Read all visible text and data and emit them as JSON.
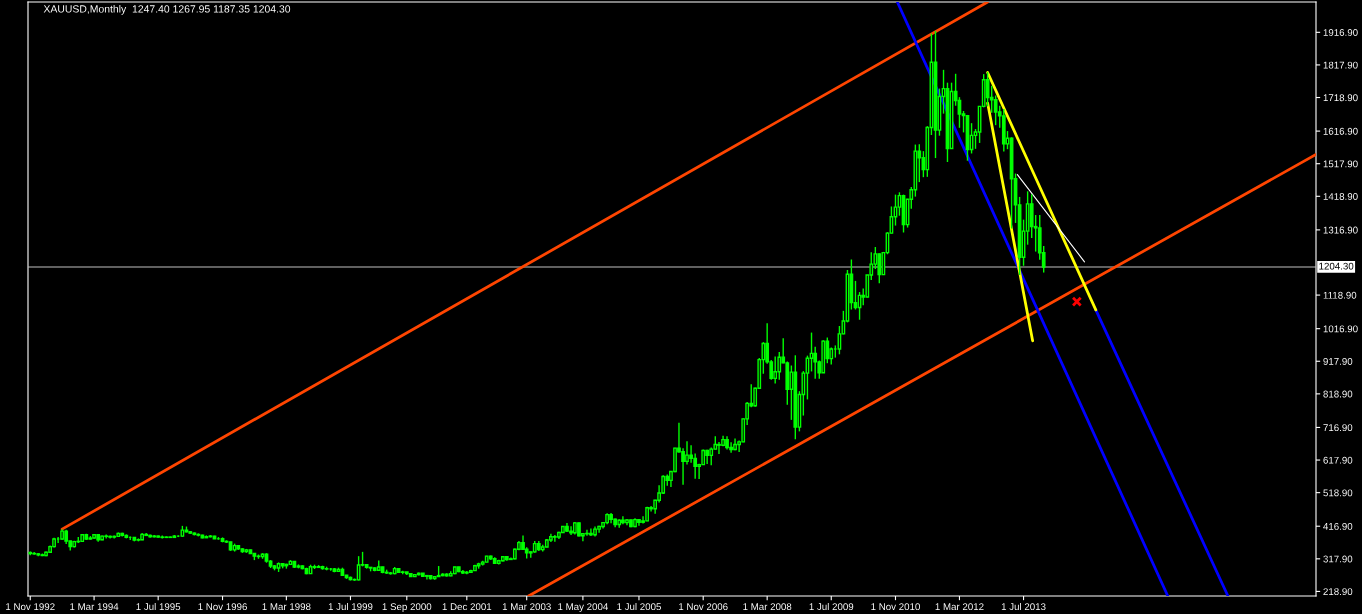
{
  "chart_data": {
    "type": "candlestick",
    "title": "XAUUSD,Monthly  1247.40 1267.95 1187.35 1204.30",
    "xlim": [
      "1992-10-15",
      "2019-08-01"
    ],
    "xticks": [
      {
        "value": "1992-11-01",
        "label": "1 Nov 1992"
      },
      {
        "value": "1994-03-01",
        "label": "1 Mar 1994"
      },
      {
        "value": "1995-07-01",
        "label": "1 Jul 1995"
      },
      {
        "value": "1996-11-01",
        "label": "1 Nov 1996"
      },
      {
        "value": "1998-03-01",
        "label": "1 Mar 1998"
      },
      {
        "value": "1999-07-01",
        "label": "1 Jul 1999"
      },
      {
        "value": "2000-09-01",
        "label": "1 Sep 2000"
      },
      {
        "value": "2001-12-01",
        "label": "1 Dec 2001"
      },
      {
        "value": "2003-03-01",
        "label": "1 Mar 2003"
      },
      {
        "value": "2004-05-01",
        "label": "1 May 2004"
      },
      {
        "value": "2005-07-01",
        "label": "1 Jul 2005"
      },
      {
        "value": "2006-11-01",
        "label": "1 Nov 2006"
      },
      {
        "value": "2008-03-01",
        "label": "1 Mar 2008"
      },
      {
        "value": "2009-07-01",
        "label": "1 Jul 2009"
      },
      {
        "value": "2010-11-01",
        "label": "1 Nov 2010"
      },
      {
        "value": "2012-03-01",
        "label": "1 Mar 2012"
      },
      {
        "value": "2013-07-01",
        "label": "1 Jul 2013"
      }
    ],
    "ylim": [
      205,
      2009
    ],
    "yticks": [
      {
        "value": 218.9,
        "label": "218.90"
      },
      {
        "value": 317.9,
        "label": "317.90"
      },
      {
        "value": 416.9,
        "label": "416.90"
      },
      {
        "value": 518.9,
        "label": "518.90"
      },
      {
        "value": 617.9,
        "label": "617.90"
      },
      {
        "value": 716.9,
        "label": "716.90"
      },
      {
        "value": 818.9,
        "label": "818.90"
      },
      {
        "value": 917.9,
        "label": "917.90"
      },
      {
        "value": 1016.9,
        "label": "1016.90"
      },
      {
        "value": 1118.9,
        "label": "1118.90"
      },
      {
        "value": 1316.9,
        "label": "1316.90"
      },
      {
        "value": 1418.9,
        "label": "1418.90"
      },
      {
        "value": 1517.9,
        "label": "1517.90"
      },
      {
        "value": 1616.9,
        "label": "1616.90"
      },
      {
        "value": 1718.9,
        "label": "1718.90"
      },
      {
        "value": 1817.9,
        "label": "1817.90"
      },
      {
        "value": 1916.9,
        "label": "1916.90"
      }
    ],
    "ref_lines": [
      {
        "axis": "y",
        "value": 1204.3,
        "label": "1204.30",
        "color": "#c0c0c0"
      }
    ],
    "series": [
      {
        "color": "#00ff00",
        "x": [
          "1992-11",
          "1992-12",
          "1993-01",
          "1993-02",
          "1993-03",
          "1993-04",
          "1993-05",
          "1993-06",
          "1993-07",
          "1993-08",
          "1993-09",
          "1993-10",
          "1993-11",
          "1993-12",
          "1994-01",
          "1994-02",
          "1994-03",
          "1994-04",
          "1994-05",
          "1994-06",
          "1994-07",
          "1994-08",
          "1994-09",
          "1994-10",
          "1994-11",
          "1994-12",
          "1995-01",
          "1995-02",
          "1995-03",
          "1995-04",
          "1995-05",
          "1995-06",
          "1995-07",
          "1995-08",
          "1995-09",
          "1995-10",
          "1995-11",
          "1995-12",
          "1996-01",
          "1996-02",
          "1996-03",
          "1996-04",
          "1996-05",
          "1996-06",
          "1996-07",
          "1996-08",
          "1996-09",
          "1996-10",
          "1996-11",
          "1996-12",
          "1997-01",
          "1997-02",
          "1997-03",
          "1997-04",
          "1997-05",
          "1997-06",
          "1997-07",
          "1997-08",
          "1997-09",
          "1997-10",
          "1997-11",
          "1997-12",
          "1998-01",
          "1998-02",
          "1998-03",
          "1998-04",
          "1998-05",
          "1998-06",
          "1998-07",
          "1998-08",
          "1998-09",
          "1998-10",
          "1998-11",
          "1998-12",
          "1999-01",
          "1999-02",
          "1999-03",
          "1999-04",
          "1999-05",
          "1999-06",
          "1999-07",
          "1999-08",
          "1999-09",
          "1999-10",
          "1999-11",
          "1999-12",
          "2000-01",
          "2000-02",
          "2000-03",
          "2000-04",
          "2000-05",
          "2000-06",
          "2000-07",
          "2000-08",
          "2000-09",
          "2000-10",
          "2000-11",
          "2000-12",
          "2001-01",
          "2001-02",
          "2001-03",
          "2001-04",
          "2001-05",
          "2001-06",
          "2001-07",
          "2001-08",
          "2001-09",
          "2001-10",
          "2001-11",
          "2001-12",
          "2002-01",
          "2002-02",
          "2002-03",
          "2002-04",
          "2002-05",
          "2002-06",
          "2002-07",
          "2002-08",
          "2002-09",
          "2002-10",
          "2002-11",
          "2002-12",
          "2003-01",
          "2003-02",
          "2003-03",
          "2003-04",
          "2003-05",
          "2003-06",
          "2003-07",
          "2003-08",
          "2003-09",
          "2003-10",
          "2003-11",
          "2003-12",
          "2004-01",
          "2004-02",
          "2004-03",
          "2004-04",
          "2004-05",
          "2004-06",
          "2004-07",
          "2004-08",
          "2004-09",
          "2004-10",
          "2004-11",
          "2004-12",
          "2005-01",
          "2005-02",
          "2005-03",
          "2005-04",
          "2005-05",
          "2005-06",
          "2005-07",
          "2005-08",
          "2005-09",
          "2005-10",
          "2005-11",
          "2005-12",
          "2006-01",
          "2006-02",
          "2006-03",
          "2006-04",
          "2006-05",
          "2006-06",
          "2006-07",
          "2006-08",
          "2006-09",
          "2006-10",
          "2006-11",
          "2006-12",
          "2007-01",
          "2007-02",
          "2007-03",
          "2007-04",
          "2007-05",
          "2007-06",
          "2007-07",
          "2007-08",
          "2007-09",
          "2007-10",
          "2007-11",
          "2007-12",
          "2008-01",
          "2008-02",
          "2008-03",
          "2008-04",
          "2008-05",
          "2008-06",
          "2008-07",
          "2008-08",
          "2008-09",
          "2008-10",
          "2008-11",
          "2008-12",
          "2009-01",
          "2009-02",
          "2009-03",
          "2009-04",
          "2009-05",
          "2009-06",
          "2009-07",
          "2009-08",
          "2009-09",
          "2009-10",
          "2009-11",
          "2009-12",
          "2010-01",
          "2010-02",
          "2010-03",
          "2010-04",
          "2010-05",
          "2010-06",
          "2010-07",
          "2010-08",
          "2010-09",
          "2010-10",
          "2010-11",
          "2010-12",
          "2011-01",
          "2011-02",
          "2011-03",
          "2011-04",
          "2011-05",
          "2011-06",
          "2011-07",
          "2011-08",
          "2011-09",
          "2011-10",
          "2011-11",
          "2011-12",
          "2012-01",
          "2012-02",
          "2012-03",
          "2012-04",
          "2012-05",
          "2012-06",
          "2012-07",
          "2012-08",
          "2012-09",
          "2012-10",
          "2012-11",
          "2012-12",
          "2013-01",
          "2013-02",
          "2013-03",
          "2013-04",
          "2013-05",
          "2013-06",
          "2013-07",
          "2013-08",
          "2013-09",
          "2013-10",
          "2013-11",
          "2013-12"
        ],
        "ohlc": [
          [
            337,
            340,
            329,
            334
          ],
          [
            334,
            339,
            330,
            333
          ],
          [
            333,
            335,
            326,
            330
          ],
          [
            330,
            334,
            326,
            328
          ],
          [
            328,
            340,
            326,
            338
          ],
          [
            338,
            358,
            336,
            355
          ],
          [
            355,
            382,
            352,
            378
          ],
          [
            378,
            384,
            366,
            378
          ],
          [
            378,
            408,
            376,
            402
          ],
          [
            402,
            406,
            363,
            372
          ],
          [
            372,
            373,
            343,
            355
          ],
          [
            355,
            373,
            352,
            370
          ],
          [
            370,
            384,
            366,
            371
          ],
          [
            371,
            393,
            369,
            391
          ],
          [
            391,
            394,
            375,
            378
          ],
          [
            378,
            387,
            376,
            381
          ],
          [
            381,
            393,
            379,
            391
          ],
          [
            391,
            392,
            370,
            376
          ],
          [
            376,
            389,
            374,
            387
          ],
          [
            387,
            392,
            380,
            386
          ],
          [
            386,
            389,
            380,
            384
          ],
          [
            384,
            389,
            380,
            386
          ],
          [
            386,
            398,
            384,
            395
          ],
          [
            395,
            397,
            386,
            389
          ],
          [
            389,
            392,
            380,
            383
          ],
          [
            383,
            386,
            375,
            383
          ],
          [
            383,
            384,
            371,
            375
          ],
          [
            375,
            380,
            371,
            376
          ],
          [
            376,
            396,
            374,
            392
          ],
          [
            392,
            396,
            387,
            389
          ],
          [
            389,
            392,
            382,
            385
          ],
          [
            385,
            390,
            383,
            387
          ],
          [
            387,
            389,
            382,
            384
          ],
          [
            384,
            389,
            380,
            383
          ],
          [
            383,
            386,
            381,
            384
          ],
          [
            384,
            386,
            381,
            383
          ],
          [
            383,
            390,
            382,
            387
          ],
          [
            387,
            389,
            384,
            387
          ],
          [
            387,
            418,
            385,
            405
          ],
          [
            405,
            416,
            398,
            400
          ],
          [
            400,
            402,
            394,
            396
          ],
          [
            396,
            398,
            389,
            392
          ],
          [
            392,
            395,
            386,
            390
          ],
          [
            390,
            391,
            380,
            382
          ],
          [
            382,
            389,
            381,
            385
          ],
          [
            385,
            390,
            383,
            387
          ],
          [
            387,
            388,
            378,
            379
          ],
          [
            379,
            384,
            376,
            379
          ],
          [
            379,
            383,
            368,
            371
          ],
          [
            371,
            374,
            366,
            369
          ],
          [
            369,
            370,
            342,
            345
          ],
          [
            345,
            364,
            340,
            358
          ],
          [
            358,
            359,
            345,
            348
          ],
          [
            348,
            350,
            336,
            340
          ],
          [
            340,
            348,
            336,
            345
          ],
          [
            345,
            346,
            334,
            334
          ],
          [
            334,
            335,
            314,
            326
          ],
          [
            326,
            331,
            318,
            325
          ],
          [
            325,
            335,
            318,
            332
          ],
          [
            332,
            335,
            306,
            311
          ],
          [
            311,
            314,
            290,
            296
          ],
          [
            296,
            299,
            283,
            290
          ],
          [
            290,
            307,
            278,
            303
          ],
          [
            303,
            305,
            289,
            297
          ],
          [
            297,
            303,
            288,
            301
          ],
          [
            301,
            314,
            299,
            310
          ],
          [
            310,
            311,
            290,
            293
          ],
          [
            293,
            301,
            289,
            296
          ],
          [
            296,
            298,
            286,
            288
          ],
          [
            288,
            291,
            271,
            273
          ],
          [
            273,
            300,
            272,
            294
          ],
          [
            294,
            300,
            287,
            292
          ],
          [
            292,
            299,
            290,
            294
          ],
          [
            294,
            297,
            285,
            288
          ],
          [
            288,
            294,
            283,
            287
          ],
          [
            287,
            290,
            282,
            287
          ],
          [
            287,
            290,
            277,
            280
          ],
          [
            280,
            291,
            279,
            286
          ],
          [
            286,
            291,
            267,
            268
          ],
          [
            268,
            269,
            257,
            261
          ],
          [
            261,
            264,
            252,
            255
          ],
          [
            255,
            258,
            251,
            254
          ],
          [
            254,
            326,
            252,
            299
          ],
          [
            299,
            339,
            295,
            300
          ],
          [
            300,
            301,
            288,
            292
          ],
          [
            292,
            293,
            280,
            290
          ],
          [
            290,
            292,
            280,
            283
          ],
          [
            283,
            313,
            282,
            293
          ],
          [
            293,
            294,
            274,
            277
          ],
          [
            277,
            285,
            272,
            275
          ],
          [
            275,
            278,
            270,
            273
          ],
          [
            273,
            293,
            271,
            288
          ],
          [
            288,
            289,
            276,
            277
          ],
          [
            277,
            282,
            271,
            278
          ],
          [
            278,
            278,
            269,
            273
          ],
          [
            273,
            275,
            263,
            264
          ],
          [
            264,
            272,
            263,
            270
          ],
          [
            270,
            276,
            267,
            274
          ],
          [
            274,
            274,
            263,
            265
          ],
          [
            265,
            269,
            255,
            267
          ],
          [
            267,
            268,
            255,
            258
          ],
          [
            258,
            266,
            254,
            264
          ],
          [
            264,
            296,
            263,
            267
          ],
          [
            267,
            274,
            265,
            271
          ],
          [
            271,
            274,
            264,
            266
          ],
          [
            266,
            280,
            265,
            273
          ],
          [
            273,
            294,
            271,
            293
          ],
          [
            293,
            294,
            277,
            279
          ],
          [
            279,
            284,
            272,
            275
          ],
          [
            275,
            281,
            271,
            277
          ],
          [
            277,
            285,
            276,
            282
          ],
          [
            282,
            300,
            281,
            297
          ],
          [
            297,
            306,
            288,
            302
          ],
          [
            302,
            312,
            298,
            308
          ],
          [
            308,
            327,
            307,
            326
          ],
          [
            326,
            328,
            314,
            318
          ],
          [
            318,
            323,
            302,
            304
          ],
          [
            304,
            315,
            301,
            312
          ],
          [
            312,
            325,
            310,
            324
          ],
          [
            324,
            326,
            312,
            316
          ],
          [
            316,
            322,
            314,
            318
          ],
          [
            318,
            349,
            316,
            347
          ],
          [
            347,
            372,
            344,
            367
          ],
          [
            367,
            389,
            346,
            347
          ],
          [
            347,
            353,
            319,
            336
          ],
          [
            336,
            341,
            321,
            339
          ],
          [
            339,
            372,
            336,
            364
          ],
          [
            364,
            372,
            342,
            346
          ],
          [
            346,
            361,
            340,
            354
          ],
          [
            354,
            378,
            352,
            375
          ],
          [
            375,
            394,
            369,
            385
          ],
          [
            385,
            390,
            370,
            384
          ],
          [
            384,
            400,
            378,
            398
          ],
          [
            398,
            417,
            397,
            416
          ],
          [
            416,
            427,
            399,
            402
          ],
          [
            402,
            417,
            390,
            397
          ],
          [
            397,
            430,
            392,
            427
          ],
          [
            427,
            428,
            386,
            388
          ],
          [
            388,
            395,
            371,
            394
          ],
          [
            394,
            406,
            388,
            395
          ],
          [
            395,
            410,
            387,
            391
          ],
          [
            391,
            416,
            386,
            408
          ],
          [
            408,
            418,
            397,
            416
          ],
          [
            416,
            430,
            410,
            428
          ],
          [
            428,
            456,
            423,
            452
          ],
          [
            452,
            457,
            426,
            438
          ],
          [
            438,
            440,
            414,
            422
          ],
          [
            422,
            438,
            412,
            435
          ],
          [
            435,
            447,
            423,
            428
          ],
          [
            428,
            439,
            420,
            436
          ],
          [
            436,
            437,
            414,
            416
          ],
          [
            416,
            441,
            414,
            437
          ],
          [
            437,
            438,
            418,
            429
          ],
          [
            429,
            447,
            425,
            433
          ],
          [
            433,
            476,
            432,
            473
          ],
          [
            473,
            478,
            462,
            470
          ],
          [
            470,
            497,
            455,
            496
          ],
          [
            496,
            541,
            489,
            518
          ],
          [
            518,
            572,
            515,
            568
          ],
          [
            568,
            574,
            540,
            556
          ],
          [
            556,
            585,
            536,
            583
          ],
          [
            583,
            655,
            581,
            654
          ],
          [
            654,
            731,
            640,
            643
          ],
          [
            643,
            654,
            543,
            614
          ],
          [
            614,
            675,
            604,
            633
          ],
          [
            633,
            663,
            610,
            623
          ],
          [
            623,
            638,
            561,
            599
          ],
          [
            599,
            607,
            560,
            604
          ],
          [
            604,
            650,
            603,
            647
          ],
          [
            647,
            649,
            606,
            632
          ],
          [
            632,
            656,
            602,
            651
          ],
          [
            651,
            690,
            650,
            665
          ],
          [
            665,
            673,
            636,
            663
          ],
          [
            663,
            692,
            660,
            680
          ],
          [
            680,
            690,
            650,
            656
          ],
          [
            656,
            672,
            640,
            650
          ],
          [
            650,
            683,
            648,
            665
          ],
          [
            665,
            677,
            642,
            673
          ],
          [
            673,
            745,
            672,
            743
          ],
          [
            743,
            794,
            724,
            790
          ],
          [
            790,
            848,
            778,
            783
          ],
          [
            783,
            838,
            780,
            836
          ],
          [
            836,
            928,
            836,
            923
          ],
          [
            923,
            976,
            880,
            972
          ],
          [
            972,
            1033,
            910,
            916
          ],
          [
            916,
            922,
            862,
            866
          ],
          [
            866,
            932,
            850,
            886
          ],
          [
            886,
            946,
            862,
            930
          ],
          [
            930,
            988,
            912,
            913
          ],
          [
            913,
            917,
            786,
            833
          ],
          [
            833,
            905,
            740,
            885
          ],
          [
            885,
            936,
            681,
            718
          ],
          [
            718,
            827,
            705,
            817
          ],
          [
            817,
            888,
            753,
            882
          ],
          [
            882,
            935,
            802,
            927
          ],
          [
            927,
            1005,
            887,
            942
          ],
          [
            942,
            962,
            865,
            916
          ],
          [
            916,
            920,
            865,
            883
          ],
          [
            883,
            982,
            883,
            979
          ],
          [
            979,
            990,
            912,
            926
          ],
          [
            926,
            960,
            908,
            955
          ],
          [
            955,
            966,
            929,
            955
          ],
          [
            955,
            1025,
            939,
            1001
          ],
          [
            1001,
            1071,
            1000,
            1040
          ],
          [
            1040,
            1195,
            1036,
            1182
          ],
          [
            1182,
            1227,
            1075,
            1096
          ],
          [
            1096,
            1162,
            1075,
            1081
          ],
          [
            1081,
            1128,
            1044,
            1118
          ],
          [
            1118,
            1139,
            1088,
            1113
          ],
          [
            1113,
            1180,
            1112,
            1180
          ],
          [
            1180,
            1249,
            1165,
            1213
          ],
          [
            1213,
            1265,
            1198,
            1244
          ],
          [
            1244,
            1245,
            1155,
            1181
          ],
          [
            1181,
            1250,
            1180,
            1248
          ],
          [
            1248,
            1310,
            1243,
            1307
          ],
          [
            1307,
            1388,
            1306,
            1357
          ],
          [
            1357,
            1424,
            1330,
            1386
          ],
          [
            1386,
            1431,
            1360,
            1421
          ],
          [
            1421,
            1424,
            1309,
            1333
          ],
          [
            1333,
            1411,
            1324,
            1410
          ],
          [
            1410,
            1447,
            1381,
            1439
          ],
          [
            1439,
            1576,
            1418,
            1556
          ],
          [
            1556,
            1577,
            1462,
            1536
          ],
          [
            1536,
            1556,
            1477,
            1500
          ],
          [
            1500,
            1632,
            1478,
            1628
          ],
          [
            1628,
            1913,
            1605,
            1826
          ],
          [
            1826,
            1921,
            1535,
            1620
          ],
          [
            1620,
            1746,
            1603,
            1722
          ],
          [
            1722,
            1803,
            1670,
            1746
          ],
          [
            1746,
            1764,
            1523,
            1564
          ],
          [
            1564,
            1764,
            1564,
            1737
          ],
          [
            1737,
            1791,
            1694,
            1710
          ],
          [
            1710,
            1720,
            1627,
            1669
          ],
          [
            1669,
            1678,
            1613,
            1664
          ],
          [
            1664,
            1666,
            1527,
            1561
          ],
          [
            1561,
            1641,
            1549,
            1604
          ],
          [
            1604,
            1623,
            1563,
            1614
          ],
          [
            1614,
            1693,
            1581,
            1692
          ],
          [
            1692,
            1790,
            1689,
            1773
          ],
          [
            1773,
            1796,
            1692,
            1719
          ],
          [
            1719,
            1755,
            1673,
            1712
          ],
          [
            1712,
            1725,
            1635,
            1675
          ],
          [
            1675,
            1694,
            1627,
            1663
          ],
          [
            1663,
            1684,
            1555,
            1578
          ],
          [
            1578,
            1617,
            1562,
            1595
          ],
          [
            1595,
            1598,
            1321,
            1472
          ],
          [
            1472,
            1488,
            1338,
            1393
          ],
          [
            1393,
            1417,
            1180,
            1234
          ],
          [
            1234,
            1348,
            1208,
            1313
          ],
          [
            1313,
            1434,
            1272,
            1396
          ],
          [
            1396,
            1425,
            1292,
            1327
          ],
          [
            1327,
            1362,
            1251,
            1323
          ],
          [
            1323,
            1362,
            1226,
            1247.4
          ],
          [
            1247.4,
            1267.95,
            1187.35,
            1204.3
          ]
        ]
      },
      {
        "type": "line",
        "color": "#ff4500",
        "x": [
          "1993-07-01",
          "2012-10-01"
        ],
        "values": [
          408,
          2009
        ]
      },
      {
        "type": "line",
        "color": "#ff4500",
        "x": [
          "2003-03-15",
          "2019-08-01"
        ],
        "values": [
          205,
          1546
        ]
      },
      {
        "type": "line",
        "color": "#0000ff",
        "x": [
          "2010-11-15",
          "2016-07-01"
        ],
        "values": [
          2009,
          205
        ]
      },
      {
        "type": "line",
        "color": "#0000ff",
        "x": [
          "2015-01-01",
          "2017-10-01"
        ],
        "values": [
          1074,
          205
        ]
      },
      {
        "type": "line",
        "color": "#ffff00",
        "x": [
          "2012-10-01",
          "2015-01-01"
        ],
        "values": [
          1795,
          1074
        ]
      },
      {
        "type": "line",
        "color": "#ffff00",
        "x": [
          "2012-10-01",
          "2013-09-08"
        ],
        "values": [
          1702,
          980
        ]
      },
      {
        "type": "line",
        "color": "#ffffff",
        "x": [
          "2013-05-15",
          "2014-10-07"
        ],
        "values": [
          1485,
          1220
        ]
      },
      {
        "type": "scatter",
        "color": "#ff0000",
        "marker": "cross",
        "x": [
          "2014-08-10"
        ],
        "values": [
          1099
        ]
      }
    ]
  }
}
